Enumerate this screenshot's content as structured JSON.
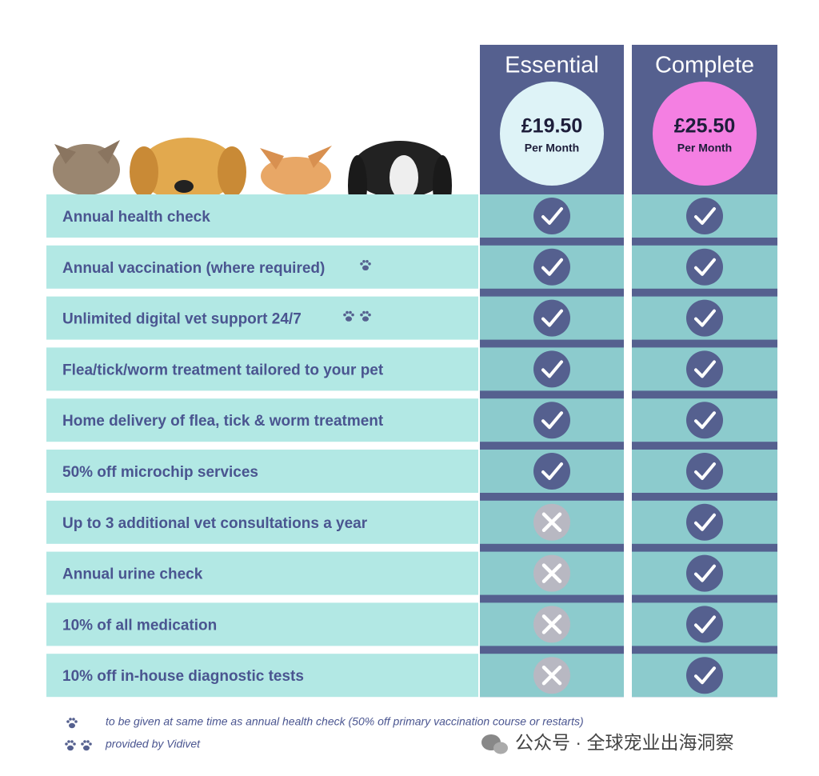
{
  "plans": [
    {
      "name": "Essential",
      "price": "£19.50",
      "period": "Per Month",
      "color": "#def3f7"
    },
    {
      "name": "Complete",
      "price": "£25.50",
      "period": "Per Month",
      "color": "#f47fe2"
    }
  ],
  "features": [
    {
      "label": "Annual health check",
      "included": [
        true,
        true
      ]
    },
    {
      "label": "Annual vaccination (where required)",
      "included": [
        true,
        true
      ]
    },
    {
      "label": "Unlimited digital vet support 24/7",
      "included": [
        true,
        true
      ]
    },
    {
      "label": "Flea/tick/worm treatment tailored to your pet",
      "included": [
        true,
        true
      ]
    },
    {
      "label": "Home delivery of flea, tick & worm treatment",
      "included": [
        true,
        true
      ]
    },
    {
      "label": "50% off microchip services",
      "included": [
        true,
        true
      ]
    },
    {
      "label": "Up to 3 additional vet consultations a year",
      "included": [
        false,
        true
      ]
    },
    {
      "label": "Annual urine check",
      "included": [
        false,
        true
      ]
    },
    {
      "label": "10% of all medication",
      "included": [
        false,
        true
      ]
    },
    {
      "label": "10% off in-house diagnostic tests",
      "included": [
        false,
        true
      ]
    }
  ],
  "footnotes": [
    "to be given at same time as annual health check (50% off primary vaccination course or restarts)",
    "provided by Vidivet"
  ],
  "watermark": "公众号 · 全球宠业出海洞察"
}
